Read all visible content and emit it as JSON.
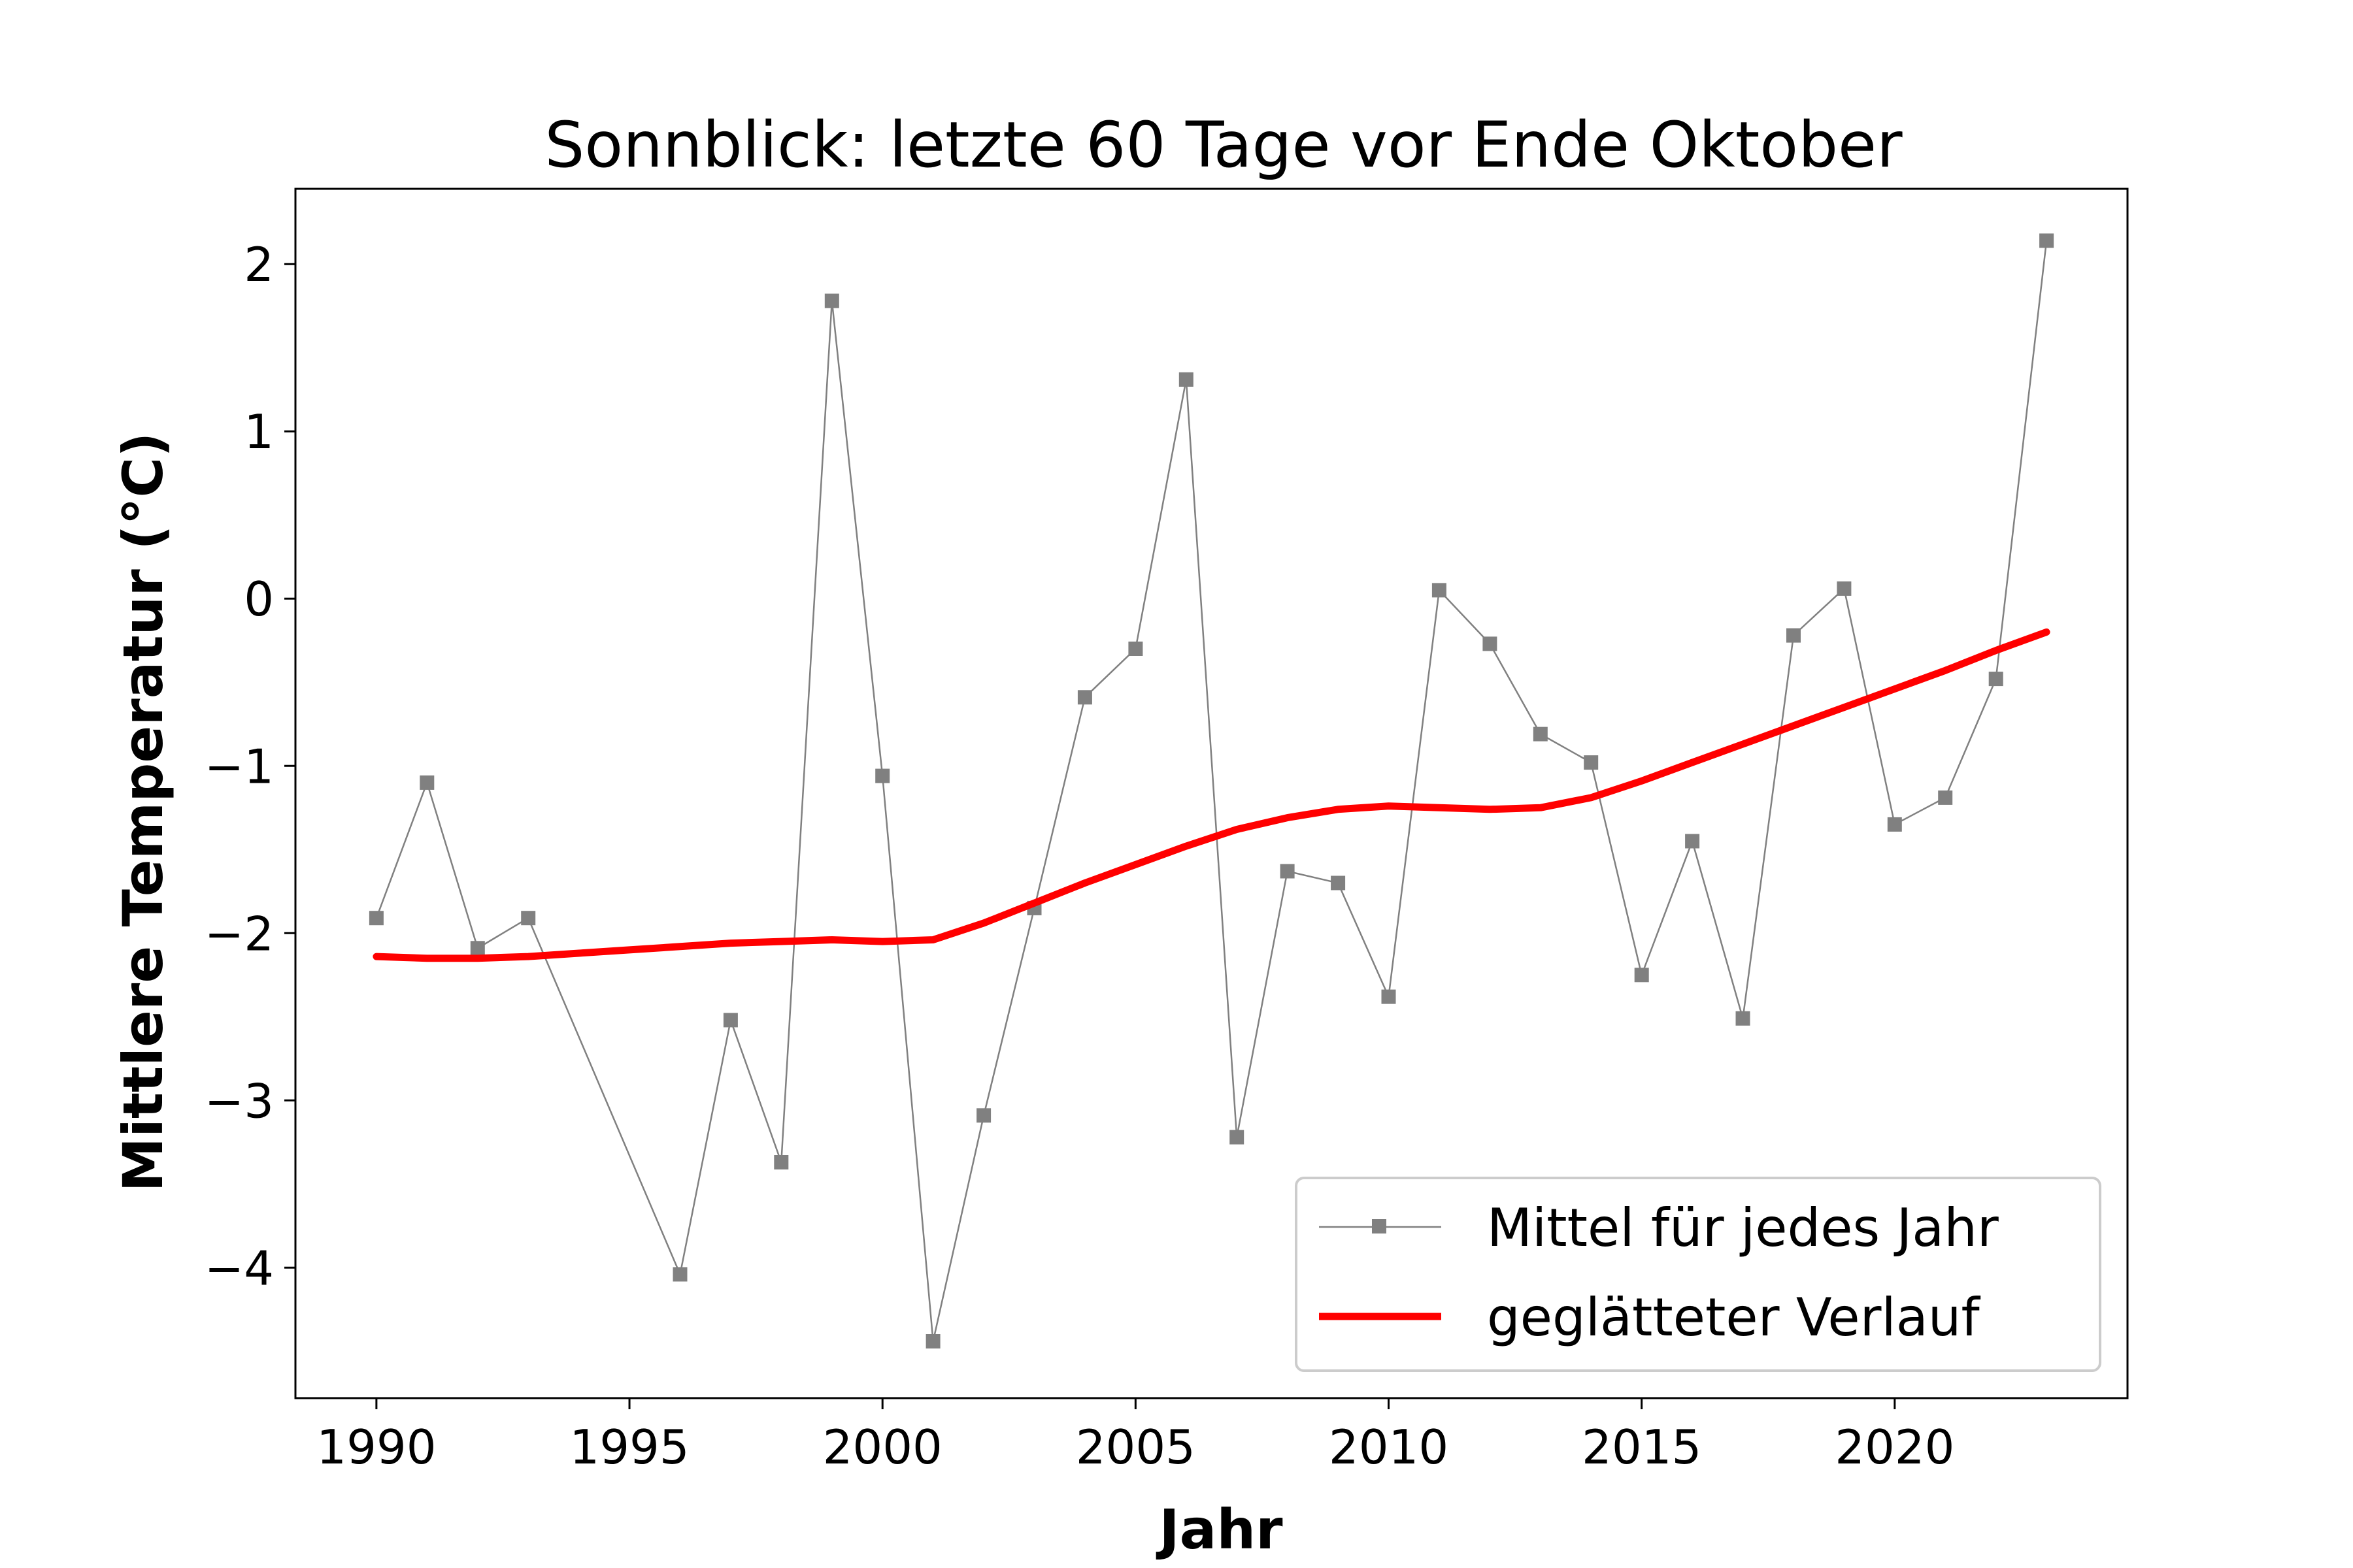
{
  "chart_data": {
    "type": "line",
    "title": "Sonnblick: letzte 60 Tage vor Ende Oktober",
    "xlabel": "Jahr",
    "ylabel": "Mittlere Temperatur (°C)",
    "xlim": [
      1988.4,
      2024.6
    ],
    "ylim": [
      -4.78,
      2.45
    ],
    "xticks": [
      1990,
      1995,
      2000,
      2005,
      2010,
      2015,
      2020
    ],
    "yticks": [
      -4,
      -3,
      -2,
      -1,
      0,
      1,
      2
    ],
    "ytick_labels": [
      "−4",
      "−3",
      "−2",
      "−1",
      "0",
      "1",
      "2"
    ],
    "grid": false,
    "legend_position": "bottom-right",
    "series": [
      {
        "name": "Mittel für jedes Jahr",
        "color": "#808080",
        "marker": "square",
        "x": [
          1990,
          1991,
          1992,
          1993,
          1996,
          1997,
          1998,
          1999,
          2000,
          2001,
          2002,
          2003,
          2004,
          2005,
          2006,
          2007,
          2008,
          2009,
          2010,
          2011,
          2012,
          2013,
          2014,
          2015,
          2016,
          2017,
          2018,
          2019,
          2020,
          2021,
          2022,
          2023
        ],
        "values": [
          -1.91,
          -1.1,
          -2.09,
          -1.91,
          -4.04,
          -2.52,
          -3.37,
          1.78,
          -1.06,
          -4.44,
          -3.09,
          -1.85,
          -0.59,
          -0.3,
          1.31,
          -3.22,
          -1.63,
          -1.7,
          -2.38,
          0.05,
          -0.27,
          -0.81,
          -0.98,
          -2.25,
          -1.45,
          -2.51,
          -0.22,
          0.06,
          -1.35,
          -1.19,
          -0.48,
          2.14
        ]
      },
      {
        "name": "geglätteter Verlauf",
        "color": "#ff0000",
        "x": [
          1990,
          1991,
          1992,
          1993,
          1994,
          1995,
          1996,
          1997,
          1998,
          1999,
          2000,
          2001,
          2002,
          2003,
          2004,
          2005,
          2006,
          2007,
          2008,
          2009,
          2010,
          2011,
          2012,
          2013,
          2014,
          2015,
          2016,
          2017,
          2018,
          2019,
          2020,
          2021,
          2022,
          2023
        ],
        "values": [
          -2.14,
          -2.15,
          -2.15,
          -2.14,
          -2.12,
          -2.1,
          -2.08,
          -2.06,
          -2.05,
          -2.04,
          -2.05,
          -2.04,
          -1.94,
          -1.82,
          -1.7,
          -1.59,
          -1.48,
          -1.38,
          -1.31,
          -1.26,
          -1.24,
          -1.25,
          -1.26,
          -1.25,
          -1.19,
          -1.09,
          -0.98,
          -0.87,
          -0.76,
          -0.65,
          -0.54,
          -0.43,
          -0.31,
          -0.2
        ]
      }
    ]
  }
}
